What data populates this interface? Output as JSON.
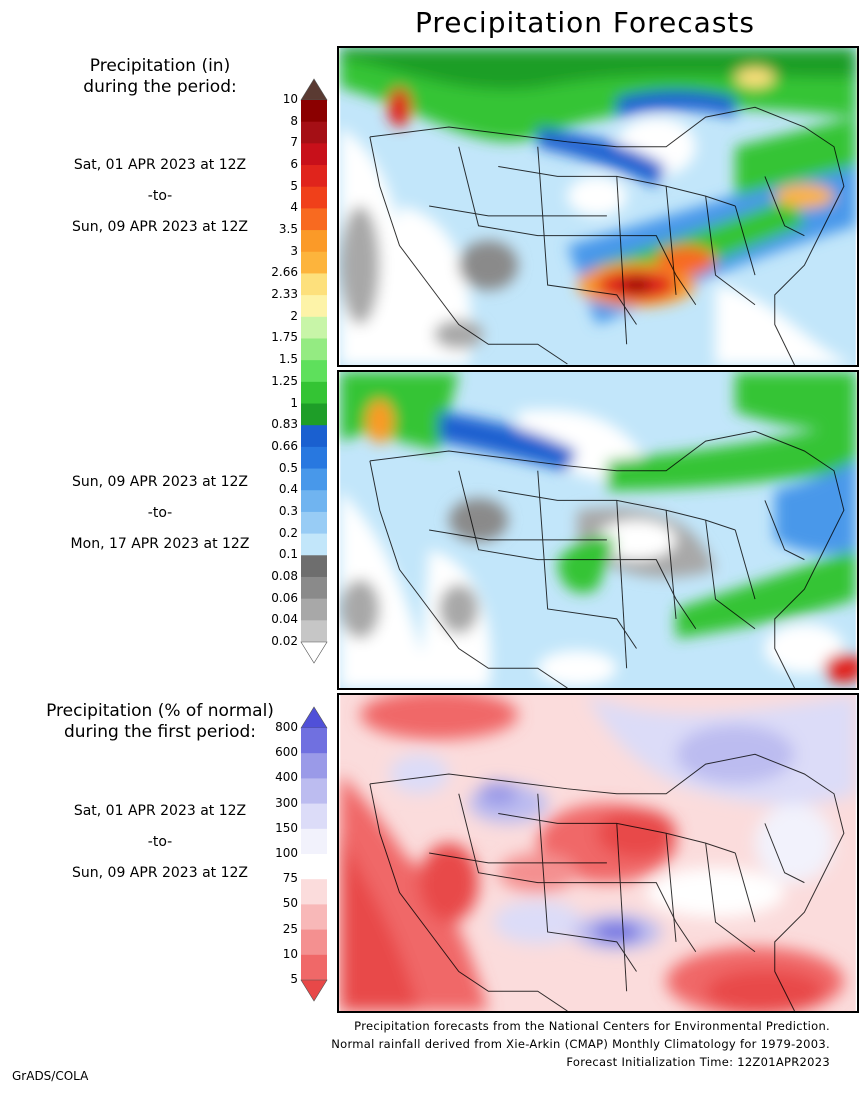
{
  "title": "Precipitation Forecasts",
  "amount_heading": [
    "Precipitation (in)",
    "during the period:"
  ],
  "percent_heading": [
    "Precipitation (% of normal)",
    "during the first period:"
  ],
  "periods": [
    {
      "start": "Sat, 01 APR 2023 at 12Z",
      "sep": "-to-",
      "end": "Sun, 09 APR 2023 at 12Z"
    },
    {
      "start": "Sun, 09 APR 2023 at 12Z",
      "sep": "-to-",
      "end": "Mon, 17 APR 2023 at 12Z"
    },
    {
      "start": "Sat, 01 APR 2023 at 12Z",
      "sep": "-to-",
      "end": "Sun, 09 APR 2023 at 12Z"
    }
  ],
  "amount_scale": {
    "labels": [
      "10",
      "8",
      "7",
      "6",
      "5",
      "4",
      "3.5",
      "3",
      "2.66",
      "2.33",
      "2",
      "1.75",
      "1.5",
      "1.25",
      "1",
      "0.83",
      "0.66",
      "0.5",
      "0.4",
      "0.3",
      "0.2",
      "0.1",
      "0.08",
      "0.06",
      "0.04",
      "0.02"
    ],
    "colors": [
      "#5a3a32",
      "#8b0000",
      "#a50f15",
      "#c8101a",
      "#e0241c",
      "#f0401a",
      "#f86a20",
      "#fb9a28",
      "#fdb43c",
      "#fde07c",
      "#fdf3a8",
      "#c8f5a8",
      "#94eb82",
      "#5ee05c",
      "#34c434",
      "#1e9e28",
      "#1a60d0",
      "#2878e0",
      "#4898ea",
      "#70b4f0",
      "#98ccf5",
      "#c2e6fa",
      "#6e6e6e",
      "#8a8a8a",
      "#a8a8a8",
      "#c6c6c6",
      "#ffffff"
    ]
  },
  "percent_scale": {
    "labels": [
      "800",
      "600",
      "400",
      "300",
      "150",
      "100",
      "75",
      "50",
      "25",
      "10",
      "5"
    ],
    "colors": [
      "#5050d8",
      "#7070e0",
      "#9a9ae8",
      "#bcbcf0",
      "#dcdcf8",
      "#f2f2fc",
      "#ffffff",
      "#fbdcdc",
      "#f8b8b8",
      "#f49090",
      "#f06868",
      "#e84848"
    ]
  },
  "footer": [
    "Precipitation forecasts from the National Centers for Environmental Prediction.",
    "Normal rainfall derived from Xie-Arkin (CMAP) Monthly Climatology for 1979-2003.",
    "Forecast Initialization Time: 12Z01APR2023"
  ],
  "credit": "GrADS/COLA"
}
